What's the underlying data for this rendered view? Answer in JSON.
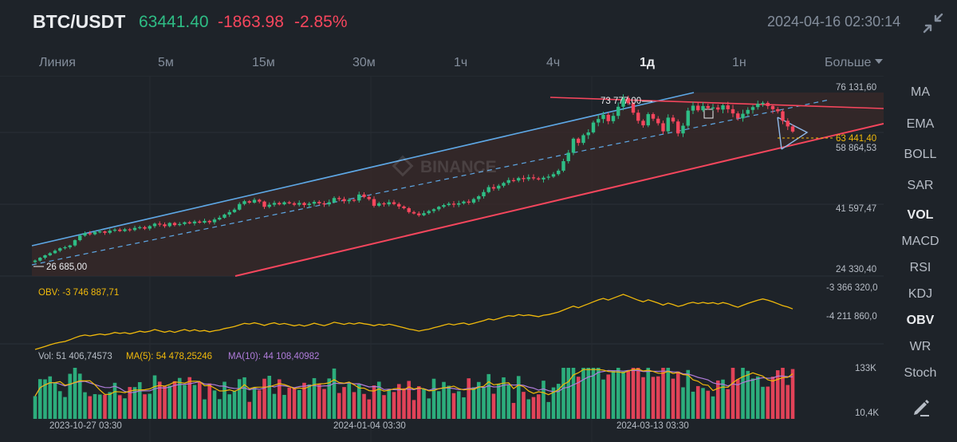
{
  "header": {
    "pair": "BTC/USDT",
    "price": "63441.40",
    "change": "-1863.98",
    "change_pct": "-2.85%",
    "datetime": "2024-04-16 02:30:14",
    "collapse_icon": "collapse-arrows-icon"
  },
  "tabs": [
    {
      "label": "Линия",
      "active": false
    },
    {
      "label": "5м",
      "active": false
    },
    {
      "label": "15м",
      "active": false
    },
    {
      "label": "30м",
      "active": false
    },
    {
      "label": "1ч",
      "active": false
    },
    {
      "label": "4ч",
      "active": false
    },
    {
      "label": "1д",
      "active": true
    },
    {
      "label": "1н",
      "active": false
    },
    {
      "label": "Больше",
      "active": false
    }
  ],
  "indicators": [
    {
      "label": "MA",
      "active": false
    },
    {
      "label": "EMA",
      "active": false
    },
    {
      "label": "BOLL",
      "active": false
    },
    {
      "label": "SAR",
      "active": false
    },
    {
      "label": "VOL",
      "active": true
    },
    {
      "label": "MACD",
      "active": false
    },
    {
      "label": "RSI",
      "active": false
    },
    {
      "label": "KDJ",
      "active": false
    },
    {
      "label": "OBV",
      "active": true
    },
    {
      "label": "WR",
      "active": false
    },
    {
      "label": "Stoch",
      "active": false
    }
  ],
  "watermark": "BINANCE",
  "colors": {
    "up": "#2ebd85",
    "down": "#f6465d",
    "ma5": "#f0b90b",
    "ma10": "#b07cdb",
    "obv": "#f0b90b",
    "channel": "#5ea8e6"
  },
  "chart_data": [
    {
      "type": "candlestick",
      "y_ticks": [
        "76 131,60",
        "58 864,53",
        "41 597,47",
        "24 330,40"
      ],
      "y_tick_values": [
        76131.6,
        58864.53,
        41597.47,
        24330.4
      ],
      "ylim": [
        24330.4,
        76131.6
      ],
      "annotations": {
        "high_label": "73 777,00",
        "high_value": 73777.0,
        "low_label": "26 685,00",
        "low_value": 26685.0,
        "last_label": "63 441,40",
        "last_value": 63441.4
      },
      "x_ticks": [
        "2023-10-27 03:30",
        "2024-01-04 03:30",
        "2024-03-13 03:30"
      ],
      "closes": [
        26685,
        27500,
        28200,
        28800,
        29500,
        30200,
        30500,
        31000,
        32500,
        33800,
        34500,
        34200,
        34800,
        35000,
        34600,
        35200,
        35500,
        35100,
        35600,
        35400,
        36000,
        36200,
        35800,
        36500,
        37200,
        37000,
        36500,
        37400,
        36800,
        37100,
        37600,
        37300,
        37800,
        37500,
        38000,
        37600,
        38400,
        38900,
        39800,
        40500,
        41200,
        42800,
        43600,
        43200,
        44000,
        43500,
        42000,
        42600,
        43100,
        42700,
        43300,
        43000,
        42600,
        43100,
        42500,
        42900,
        43400,
        43000,
        42700,
        43300,
        44500,
        44200,
        43600,
        44000,
        43800,
        45500,
        44800,
        44200,
        42300,
        43000,
        42700,
        43300,
        42800,
        42100,
        41600,
        40500,
        40100,
        39600,
        40200,
        40800,
        41300,
        42000,
        42500,
        42900,
        42600,
        43000,
        43500,
        43200,
        44200,
        45000,
        46200,
        47600,
        47200,
        48000,
        48800,
        49600,
        49500,
        50200,
        49900,
        50400,
        50100,
        49800,
        50300,
        50600,
        51300,
        52300,
        55000,
        57400,
        61400,
        60200,
        62400,
        63200,
        66000,
        67000,
        68200,
        66400,
        67900,
        70500,
        73000,
        71500,
        68800,
        66500,
        65200,
        68400,
        67100,
        65800,
        63500,
        67400,
        66300,
        62900,
        65100,
        69400,
        70800,
        69500,
        70700,
        70100,
        70300,
        69700,
        70900,
        69800,
        68600,
        67200,
        68500,
        69600,
        70400,
        71300,
        71600,
        70700,
        69800,
        69200,
        66500,
        64900,
        63441
      ]
    },
    {
      "type": "line",
      "series": [
        {
          "name": "OBV",
          "current": "-3 746 887,71"
        }
      ],
      "y_ticks": [
        "-3 366 320,0",
        "-4 211 860,0"
      ],
      "y_tick_values": [
        -3366320.0,
        -4211860.0
      ]
    },
    {
      "type": "bar",
      "series": [
        {
          "name": "Vol",
          "current": "51 406,74573"
        },
        {
          "name": "MA(5)",
          "current": "54 478,25246"
        },
        {
          "name": "MA(10)",
          "current": "44 108,40982"
        }
      ],
      "y_ticks": [
        "133K",
        "10,4K"
      ],
      "y_tick_values": [
        133000,
        10400
      ]
    }
  ],
  "legends": {
    "obv": "OBV: -3 746 887,71",
    "vol": "Vol: 51 406,74573",
    "ma5": "MA(5): 54 478,25246",
    "ma10": "MA(10): 44 108,40982"
  },
  "edit_icon": "edit-pencil-icon"
}
